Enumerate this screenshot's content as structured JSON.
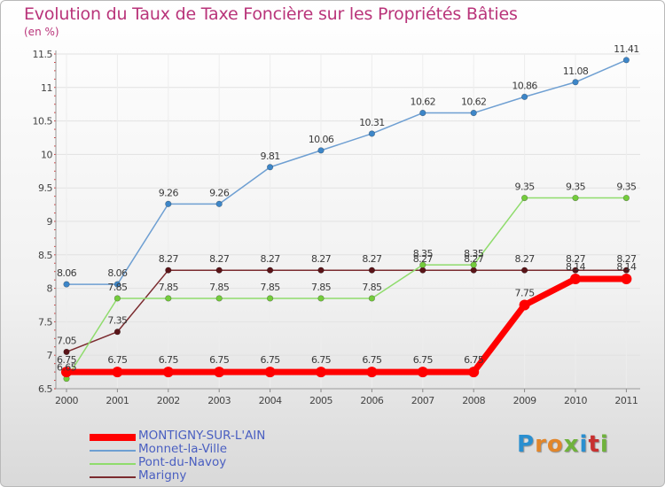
{
  "title": "Evolution du Taux de Taxe Foncière sur les Propriétés Bâties",
  "unit_label": "(en %)",
  "logo": {
    "text": "Proxiti",
    "colors": [
      "#2a8fd0",
      "#e2862a",
      "#e2862a",
      "#6fb23c",
      "#2a8fd0",
      "#c8302f",
      "#6fb23c"
    ]
  },
  "chart_data": {
    "type": "line",
    "title": "Evolution du Taux de Taxe Foncière sur les Propriétés Bâties",
    "ylabel": "(en %)",
    "xlabel": "",
    "ylim": [
      6.5,
      11.5
    ],
    "yticks": [
      "6.5",
      "7",
      "7.5",
      "8",
      "8.5",
      "9",
      "9.5",
      "10",
      "10.5",
      "11",
      "11.5"
    ],
    "categories": [
      "2000",
      "2001",
      "2002",
      "2003",
      "2004",
      "2005",
      "2006",
      "2007",
      "2008",
      "2009",
      "2010",
      "2011"
    ],
    "series": [
      {
        "name": "Marigny",
        "color": "#7b2b2f",
        "dot": "#5a1418",
        "values": [
          7.05,
          7.35,
          8.27,
          8.27,
          8.27,
          8.27,
          8.27,
          8.27,
          8.27,
          8.27,
          8.27,
          8.27
        ],
        "labels": [
          "7.05",
          "7.35",
          "8.27",
          "8.27",
          "8.27",
          "8.27",
          "8.27",
          "8.27",
          "8.27",
          "8.27",
          "8.27",
          "8.27"
        ]
      },
      {
        "name": "Pont-du-Navoy",
        "color": "#8fdc6c",
        "dot": "#74cc3c",
        "values": [
          6.65,
          7.85,
          7.85,
          7.85,
          7.85,
          7.85,
          7.85,
          8.35,
          8.35,
          9.35,
          9.35,
          9.35
        ],
        "labels": [
          "6.65",
          "7.85",
          "7.85",
          "7.85",
          "7.85",
          "7.85",
          "7.85",
          "8.35",
          "8.35",
          "9.35",
          "9.35",
          "9.35"
        ]
      },
      {
        "name": "Monnet-la-Ville",
        "color": "#6e9fd2",
        "dot": "#3d86c8",
        "values": [
          8.06,
          8.06,
          9.26,
          9.26,
          9.81,
          10.06,
          10.31,
          10.62,
          10.62,
          10.86,
          11.08,
          11.41
        ],
        "labels": [
          "8.06",
          "8.06",
          "9.26",
          "9.26",
          "9.81",
          "10.06",
          "10.31",
          "10.62",
          "10.62",
          "10.86",
          "11.08",
          "11.41"
        ]
      },
      {
        "name": "MONTIGNY-SUR-L'AIN",
        "color": "#ff0000",
        "dot": "#ff0000",
        "values": [
          6.75,
          6.75,
          6.75,
          6.75,
          6.75,
          6.75,
          6.75,
          6.75,
          6.75,
          7.75,
          8.14,
          8.14
        ],
        "labels": [
          "6.75",
          "6.75",
          "6.75",
          "6.75",
          "6.75",
          "6.75",
          "6.75",
          "6.75",
          "6.75",
          "7.75",
          "8.14",
          "8.14"
        ]
      }
    ]
  },
  "legend": [
    {
      "name": "MONTIGNY-SUR-L'AIN",
      "color": "#ff0000"
    },
    {
      "name": "Monnet-la-Ville",
      "color": "#6e9fd2"
    },
    {
      "name": "Pont-du-Navoy",
      "color": "#8fdc6c"
    },
    {
      "name": "Marigny",
      "color": "#7b2b2f"
    }
  ]
}
